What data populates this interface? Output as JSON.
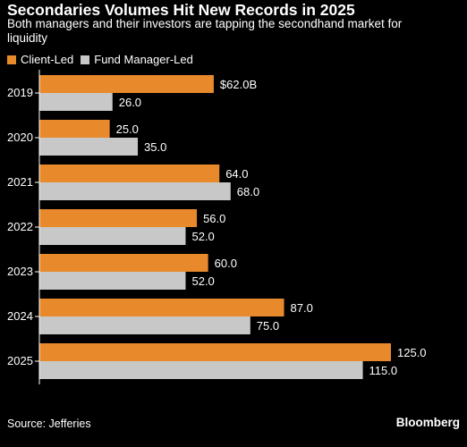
{
  "chart_data": {
    "type": "bar",
    "orientation": "horizontal",
    "title": "Secondaries Volumes Hit New Records in 2025",
    "subtitle": "Both managers and their investors are tapping the secondhand market for liquidity",
    "categories": [
      "2019",
      "2020",
      "2021",
      "2022",
      "2023",
      "2024",
      "2025"
    ],
    "series": [
      {
        "name": "Client-Led",
        "color": "#e8892b",
        "values": [
          62.0,
          25.0,
          64.0,
          56.0,
          60.0,
          87.0,
          125.0
        ],
        "labels": [
          "$62.0B",
          "25.0",
          "64.0",
          "56.0",
          "60.0",
          "87.0",
          "125.0"
        ]
      },
      {
        "name": "Fund Manager-Led",
        "color": "#c8c8c8",
        "values": [
          26.0,
          35.0,
          68.0,
          52.0,
          52.0,
          75.0,
          115.0
        ],
        "labels": [
          "26.0",
          "35.0",
          "68.0",
          "52.0",
          "52.0",
          "75.0",
          "115.0"
        ]
      }
    ],
    "xlim": [
      0,
      125
    ],
    "legend_position": "top-left",
    "grid": false
  },
  "footer": {
    "source": "Source: Jefferies",
    "brand": "Bloomberg"
  }
}
